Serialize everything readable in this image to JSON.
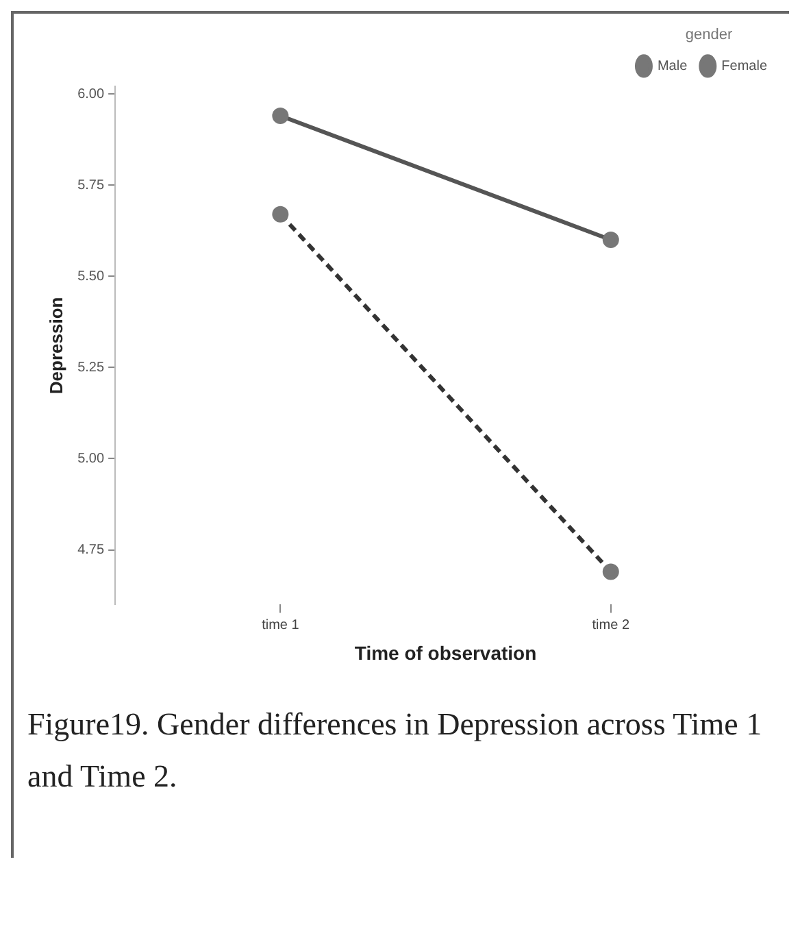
{
  "chart_data": {
    "type": "line",
    "xlabel": "Time of observation",
    "ylabel": "Depression",
    "legend_title": "gender",
    "categories": [
      "time 1",
      "time 2"
    ],
    "series": [
      {
        "name": "Male",
        "color": "#555555",
        "values": [
          5.94,
          5.6
        ],
        "line_style": "solid"
      },
      {
        "name": "Female",
        "color": "#333333",
        "values": [
          5.67,
          4.69
        ],
        "line_style": "dashed"
      }
    ],
    "ylim": [
      4.6,
      6.02
    ],
    "yticks": [
      {
        "value": 4.75,
        "label": "4.75"
      },
      {
        "value": 5,
        "label": "5.00"
      },
      {
        "value": 5.25,
        "label": "5.25"
      },
      {
        "value": 5.5,
        "label": "5.50"
      },
      {
        "value": 5.75,
        "label": "5.75"
      },
      {
        "value": 6,
        "label": "6.00"
      }
    ],
    "grid": false,
    "legend": "top right",
    "marker": "circle",
    "annotations": [
      "Figure19. Gender differences in Depression across Time 1 and Time 2."
    ]
  }
}
